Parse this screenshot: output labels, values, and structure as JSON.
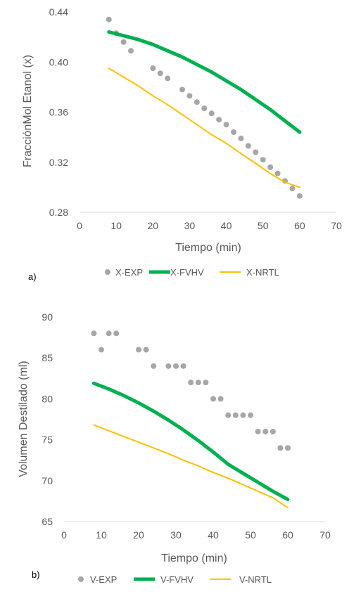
{
  "chart_data": [
    {
      "type": "line",
      "panel_label": "a)",
      "xlabel": "Tiempo (min)",
      "ylabel": "FracciónMol Etanol (x)",
      "xlim": [
        0,
        70
      ],
      "ylim": [
        0.28,
        0.44
      ],
      "x_ticks": [
        "0",
        "10",
        "20",
        "30",
        "40",
        "50",
        "60",
        "70"
      ],
      "y_ticks": [
        "0.28",
        "0.32",
        "0.36",
        "0.40",
        "0.44"
      ],
      "grid": false,
      "legend_position": "bottom",
      "series": [
        {
          "name": "X-EXP",
          "style": "markers",
          "color": "#a6a6a6",
          "x": [
            8,
            10,
            12,
            14,
            20,
            22,
            24,
            28,
            30,
            32,
            34,
            36,
            38,
            40,
            42,
            44,
            46,
            48,
            50,
            52,
            54,
            56,
            58,
            60
          ],
          "y": [
            0.434,
            0.423,
            0.416,
            0.409,
            0.395,
            0.391,
            0.387,
            0.378,
            0.373,
            0.368,
            0.363,
            0.359,
            0.354,
            0.35,
            0.344,
            0.339,
            0.333,
            0.328,
            0.322,
            0.316,
            0.311,
            0.305,
            0.299,
            0.293
          ]
        },
        {
          "name": "X-FVHV",
          "style": "line",
          "color": "#00b050",
          "x": [
            8,
            12,
            16,
            20,
            24,
            28,
            32,
            36,
            40,
            44,
            48,
            52,
            56,
            60
          ],
          "y": [
            0.424,
            0.421,
            0.418,
            0.414,
            0.409,
            0.404,
            0.398,
            0.392,
            0.385,
            0.378,
            0.37,
            0.362,
            0.353,
            0.344
          ]
        },
        {
          "name": "X-NRTL",
          "style": "line",
          "color": "#ffc000",
          "x": [
            8,
            12,
            16,
            20,
            24,
            28,
            32,
            36,
            40,
            44,
            48,
            52,
            56,
            60
          ],
          "y": [
            0.395,
            0.388,
            0.381,
            0.373,
            0.366,
            0.358,
            0.35,
            0.342,
            0.335,
            0.327,
            0.319,
            0.311,
            0.304,
            0.3
          ]
        }
      ]
    },
    {
      "type": "line",
      "panel_label": "b)",
      "xlabel": "Tiempo (min)",
      "ylabel": "Volumen Destilado (ml)",
      "xlim": [
        0,
        70
      ],
      "ylim": [
        65,
        90
      ],
      "x_ticks": [
        "0",
        "10",
        "20",
        "30",
        "40",
        "50",
        "60",
        "70"
      ],
      "y_ticks": [
        "65",
        "70",
        "75",
        "80",
        "85",
        "90"
      ],
      "grid": false,
      "legend_position": "bottom",
      "series": [
        {
          "name": "V-EXP",
          "style": "markers",
          "color": "#a6a6a6",
          "x": [
            8,
            10,
            12,
            14,
            20,
            22,
            24,
            28,
            30,
            32,
            34,
            36,
            38,
            40,
            42,
            44,
            46,
            48,
            50,
            52,
            54,
            56,
            58,
            60
          ],
          "y": [
            88,
            86,
            88,
            88,
            86,
            86,
            84,
            84,
            84,
            84,
            82,
            82,
            82,
            80,
            80,
            78,
            78,
            78,
            78,
            76,
            76,
            76,
            74,
            74
          ]
        },
        {
          "name": "V-FVHV",
          "style": "line",
          "color": "#00b050",
          "x": [
            8,
            12,
            16,
            20,
            24,
            28,
            32,
            36,
            40,
            44,
            48,
            52,
            56,
            60
          ],
          "y": [
            81.9,
            81.2,
            80.4,
            79.5,
            78.5,
            77.4,
            76.2,
            74.9,
            73.5,
            72.0,
            70.9,
            69.8,
            68.7,
            67.7
          ]
        },
        {
          "name": "V-NRTL",
          "style": "line",
          "color": "#ffc000",
          "x": [
            8,
            12,
            16,
            20,
            24,
            28,
            32,
            36,
            40,
            44,
            48,
            52,
            56,
            60
          ],
          "y": [
            76.8,
            76.1,
            75.4,
            74.7,
            74.0,
            73.3,
            72.5,
            71.8,
            71.0,
            70.3,
            69.5,
            68.7,
            67.9,
            66.7
          ]
        }
      ]
    }
  ]
}
